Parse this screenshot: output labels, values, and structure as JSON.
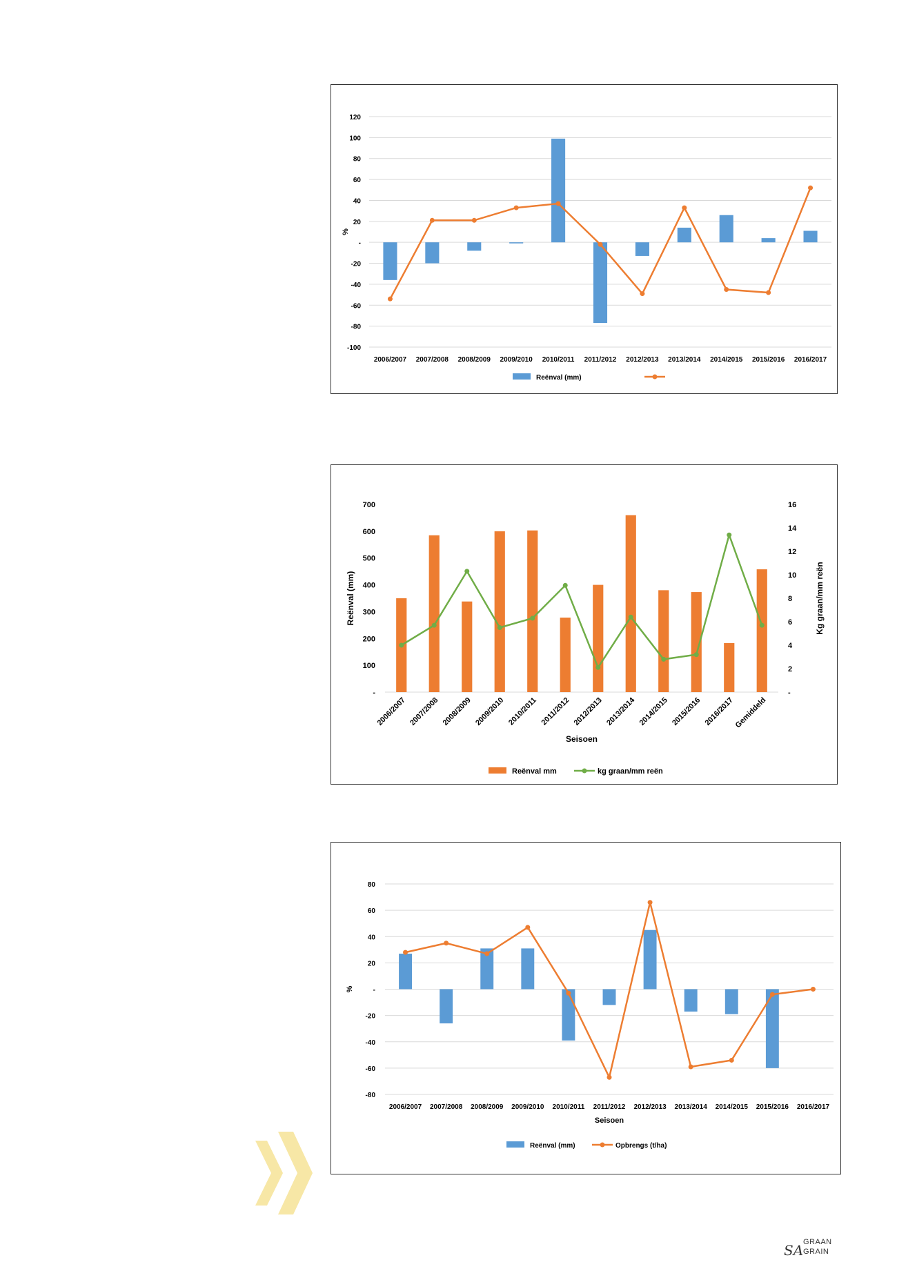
{
  "colors": {
    "blue": "#5b9bd5",
    "orange": "#ed7d31",
    "green": "#70ad47",
    "grid": "#d9d9d9",
    "axis_text": "#000000",
    "chevron": "#f7e7a6"
  },
  "chart_data": [
    {
      "type": "bar",
      "title": "",
      "xlabel": "",
      "ylabel": "%",
      "ylim": [
        -100,
        120
      ],
      "yticks": [
        "120",
        "100",
        "80",
        "60",
        "40",
        "20",
        "-",
        "-20",
        "-40",
        "-60",
        "-80",
        "-100"
      ],
      "ytick_values": [
        120,
        100,
        80,
        60,
        40,
        20,
        0,
        -20,
        -40,
        -60,
        -80,
        -100
      ],
      "categories": [
        "2006/2007",
        "2007/2008",
        "2008/2009",
        "2009/2010",
        "2010/2011",
        "2011/2012",
        "2012/2013",
        "2013/2014",
        "2014/2015",
        "2015/2016",
        "2016/2017"
      ],
      "series": [
        {
          "name": "Reënval (mm)",
          "type": "bar",
          "color": "#5b9bd5",
          "values": [
            -36,
            -20,
            -8,
            -1,
            99,
            -77,
            -13,
            14,
            26,
            4,
            11
          ]
        },
        {
          "name": "",
          "type": "line",
          "color": "#ed7d31",
          "values": [
            -54,
            21,
            21,
            33,
            37,
            -2,
            -49,
            33,
            -45,
            -48,
            52
          ]
        }
      ],
      "legend_position": "bottom",
      "grid": true
    },
    {
      "type": "bar",
      "title": "",
      "xlabel": "Seisoen",
      "ylabel": "Reënval (mm)",
      "y2label": "Kg graan/mm reën",
      "ylim": [
        0,
        700
      ],
      "y2lim": [
        0,
        16
      ],
      "yticks": [
        "700",
        "600",
        "500",
        "400",
        "300",
        "200",
        "100",
        "-"
      ],
      "ytick_values": [
        700,
        600,
        500,
        400,
        300,
        200,
        100,
        0
      ],
      "y2ticks": [
        "16",
        "14",
        "12",
        "10",
        "8",
        "6",
        "4",
        "2",
        "-"
      ],
      "y2tick_values": [
        16,
        14,
        12,
        10,
        8,
        6,
        4,
        2,
        0
      ],
      "categories": [
        "2006/2007",
        "2007/2008",
        "2008/2009",
        "2009/2010",
        "2010/2011",
        "2011/2012",
        "2012/2013",
        "2013/2014",
        "2014/2015",
        "2015/2016",
        "2016/2017",
        "Gemiddeld"
      ],
      "series": [
        {
          "name": "Reënval mm",
          "type": "bar",
          "axis": "left",
          "color": "#ed7d31",
          "values": [
            350,
            585,
            338,
            600,
            603,
            278,
            400,
            660,
            380,
            373,
            183,
            458
          ]
        },
        {
          "name": "kg graan/mm reën",
          "type": "line",
          "axis": "right",
          "color": "#70ad47",
          "values": [
            4.0,
            5.7,
            10.3,
            5.5,
            6.3,
            9.1,
            2.1,
            6.4,
            2.8,
            3.2,
            13.4,
            5.7
          ]
        }
      ],
      "legend_position": "bottom",
      "grid": false
    },
    {
      "type": "bar",
      "title": "",
      "xlabel": "Seisoen",
      "ylabel": "%",
      "ylim": [
        -80,
        80
      ],
      "yticks": [
        "80",
        "60",
        "40",
        "20",
        "-",
        "-20",
        "-40",
        "-60",
        "-80"
      ],
      "ytick_values": [
        80,
        60,
        40,
        20,
        0,
        -20,
        -40,
        -60,
        -80
      ],
      "categories": [
        "2006/2007",
        "2007/2008",
        "2008/2009",
        "2009/2010",
        "2010/2011",
        "2011/2012",
        "2012/2013",
        "2013/2014",
        "2014/2015",
        "2015/2016",
        "2016/2017"
      ],
      "series": [
        {
          "name": "Reënval (mm)",
          "type": "bar",
          "color": "#5b9bd5",
          "values": [
            27,
            -26,
            31,
            31,
            -39,
            -12,
            45,
            -17,
            -19,
            -60,
            0
          ]
        },
        {
          "name": "Opbrengs (t/ha)",
          "type": "line",
          "color": "#ed7d31",
          "values": [
            28,
            35,
            27,
            47,
            -3,
            -67,
            66,
            -59,
            -54,
            -4,
            0
          ]
        }
      ],
      "legend_position": "bottom",
      "grid": true
    }
  ],
  "logo": {
    "sa": "SA",
    "graan": "GRAAN",
    "grain": "GRAIN"
  }
}
